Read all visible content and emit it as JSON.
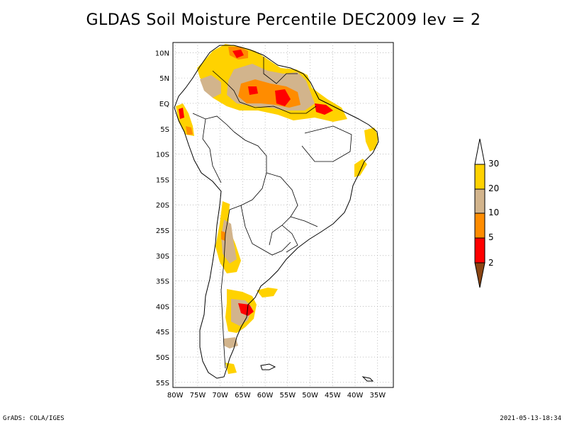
{
  "title": "GLDAS Soil Moisture Percentile DEC2009 lev = 2",
  "footer": {
    "left": "GrADS: COLA/IGES",
    "right": "2021-05-13-18:34"
  },
  "map": {
    "lat_labels": [
      "10N",
      "5N",
      "EQ",
      "5S",
      "10S",
      "15S",
      "20S",
      "25S",
      "30S",
      "35S",
      "40S",
      "45S",
      "50S",
      "55S"
    ],
    "lon_labels": [
      "80W",
      "75W",
      "70W",
      "65W",
      "60W",
      "55W",
      "50W",
      "45W",
      "40W",
      "35W"
    ],
    "lat_values": [
      10,
      5,
      0,
      -5,
      -10,
      -15,
      -20,
      -25,
      -30,
      -35,
      -40,
      -45,
      -50,
      -55
    ],
    "lon_values": [
      -80,
      -75,
      -70,
      -65,
      -60,
      -55,
      -50,
      -45,
      -40,
      -35
    ],
    "extent": {
      "lon_min": -80.5,
      "lon_max": -31.5,
      "lat_min": -56,
      "lat_max": 12
    }
  },
  "legend": {
    "labels": [
      "30",
      "20",
      "10",
      "5",
      "2"
    ],
    "colors": {
      "above": "#ffffff",
      "c20_30": "#ffd200",
      "c10_20": "#d2b48c",
      "c5_10": "#ff8c00",
      "c2_5": "#ff0000",
      "below": "#8b4513"
    }
  }
}
